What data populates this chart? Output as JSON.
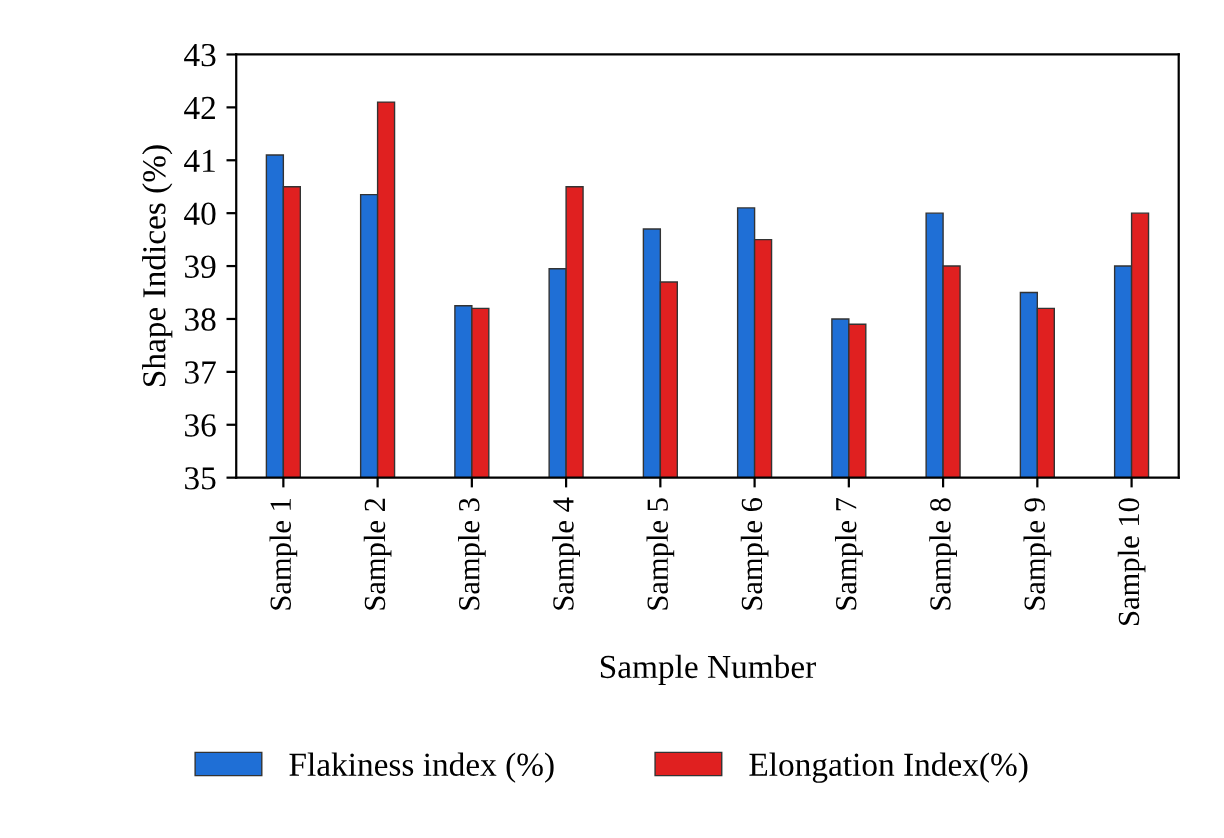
{
  "chart_data": {
    "type": "bar",
    "xlabel": "Sample Number",
    "ylabel": "Shape Indices (%)",
    "categories": [
      "Sample 1",
      "Sample 2",
      "Sample 3",
      "Sample 4",
      "Sample 5",
      "Sample 6",
      "Sample 7",
      "Sample 8",
      "Sample 9",
      "Sample 10"
    ],
    "series": [
      {
        "name": "Flakiness index (%)",
        "color": "#1f6fd6",
        "values": [
          41.1,
          40.35,
          38.25,
          38.95,
          39.7,
          40.1,
          38.0,
          40.0,
          38.5,
          39.0
        ]
      },
      {
        "name": "Elongation Index(%)",
        "color": "#e02020",
        "values": [
          40.5,
          42.1,
          38.2,
          40.5,
          38.7,
          39.5,
          37.9,
          39.0,
          38.2,
          40.0
        ]
      }
    ],
    "ylim": [
      35,
      43
    ],
    "yticks": [
      35,
      36,
      37,
      38,
      39,
      40,
      41,
      42,
      43
    ],
    "grid": false,
    "legend": "bottom"
  }
}
